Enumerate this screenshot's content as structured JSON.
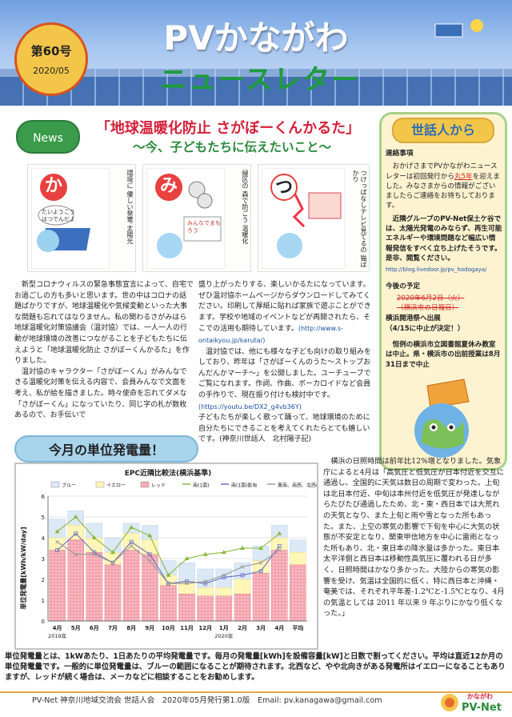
{
  "header": {
    "title": "PVかながわ",
    "subtitle": "ニュースレター",
    "issue": "第60号",
    "date": "2020/05"
  },
  "news": {
    "tag": "News",
    "headline": "「地球温暖化防止 さがぼーくんかるた」",
    "subheadline": "～今、子どもたちに伝えたいこと～",
    "cards": [
      {
        "letter": "か",
        "vertical_text": "環境に 優しい発電 太陽光",
        "bubble": "たいようこう はつでんだよ"
      },
      {
        "letter": "み",
        "vertical_text": "緑区の 森で防ごう 温暖化",
        "bubble": "みんなでまもろう"
      },
      {
        "letter": "つ",
        "vertical_text": "つけっぱなしテレビ見てるの 猫ばかり",
        "bubble": ""
      }
    ],
    "col1": [
      "新型コロナウィルスの緊急事態宣言によって、自宅でお過ごしの方も多いと思います。世の中はコロナの話題ばかりですが、地球温暖化や気候変動といった大事な問題も忘れてはなりません。私の関わるさがみはら地球温暖化対策協議会（温対協）では、一人一人の行動が地球環境の改善につながることを子どもたちに伝えようと「地球温暖化防止 さがぼーくんかるた」を作りました。",
      "温対協のキャラクター「さがぼーくん」がみんなできる温暖化対策を伝える内容で、会員みんなで文面を考え、私が絵を描きました。時々使命を忘れてダメな「さがぼーくん」になっていたり、同じ字の札が数枚あるので、お手伝いで"
    ],
    "col2_a": "盛り上がったりする、楽しいかるたになっています。ぜひ温対協ホームページからダウンロードしてみてください。印刷して厚紙に貼れば家族で遊ぶことができます。学校や地域のイベントなどが再開されたら、そこでの活用も期待しています。",
    "link1": "(http://www.s-ontaikyou.jp/karuta/)",
    "col2_b": "温対協では、他にも様々な子ども向けの取り組みをしており、昨年は「さがぼーくんのうた～ストップおんだんかマーチ～」を公開しました。ユーチューブでご覧になれます。作詞、作曲、ボーカロイドなど会員の手作りで、現在振り付けも検討中です。",
    "link2": "(https://youtu.be/DX2_g4vb36Y)",
    "col2_c": "子どもたちが楽しく歌って踊って、地球環境のために自分たちにできることを考えてくれたらとても嬉しいです。(神奈川世話人　北村陽子記)"
  },
  "sidebar": {
    "title": "世話人から",
    "contact_heading": "連絡事項",
    "contact_pre": "おかげさまでPVかながわニュースレターは初回発行から",
    "contact_em": "丸5年",
    "contact_post": "を迎えました。みなさまからの情報がございましたらご連絡をお待ちしております。",
    "group_text": "近隣グループのPV-Net保土ケ谷では、太陽光発電のみならず、再生可能エネルギーや環境問題など幅広い情報発信をすべく立ち上げたそうです。是非、閲覧ください。",
    "group_link": "http://blog.livedoor.jp/pv_hodogaya/",
    "schedule_heading": "今後の予定",
    "schedule_struck1": "2020年6月2日（火）",
    "schedule_struck2": "（横浜市の日報日）",
    "schedule_item": "横浜開港祭へ出展",
    "schedule_note": "（4/15に中止が決定！）",
    "library": "恒例の横浜市立図書館夏休み教室は中止。県・横浜市の出前授業は8月31日まで中止"
  },
  "kpi": {
    "title": "今月の単位発電量！",
    "weather": "横浜の日照時間は前年比12%増となりました。気象庁によると4月は「高気圧と低気圧が日本付近を交互に通過し、全国的に天気は数日の周期で変わった。上旬は北日本付近、中旬は本州付近を低気圧が発達しながらたびたび通過したため、北・東・西日本では大荒れの天気となり、また上旬と雨や雪となった所もあった。また、上空の寒気の影響で下旬を中心に大気の状態が不安定となり、関東甲信地方を中心に雷雨となった所もあり、北・東日本の降水量は多かった。東日本太平洋側と西日本は移動性高気圧に覆われる日が多く、日照時間はかなり多かった。大陸からの寒気の影響を受け、気温は全国的に低く、特に西日本と沖縄・奄美では、それぞれ平年差-1.2℃と-1.5℃となり、4月の気温としては 2011 年以来 9 年ぶりにかなり低くなった。」",
    "notes": "単位発電量とは、1kWあたり、1日あたりの平均発電量です。毎月の発電量[kWh]を設備容量[kW]と日数で割ってください。平均は直近12か月の単位発電量です。一般的に単位発電量は、ブルーの範囲になることが期待されます。北西など、やや北向きがある発電所はイエローになることもありますが、レッドが続く場合は、メーカなどに相談することをお勧めします。"
  },
  "chart_data": {
    "type": "bar",
    "title": "EPC近隣比較法(横浜基準)",
    "ylabel": "単位発電量[kWh/kW/day]",
    "ylim": [
      0,
      6
    ],
    "yticks": [
      0,
      1,
      2,
      3,
      4,
      5,
      6
    ],
    "categories": [
      "4月",
      "5月",
      "6月",
      "7月",
      "8月",
      "9月",
      "10月",
      "11月",
      "12月",
      "1月",
      "2月",
      "3月",
      "4月",
      "平均"
    ],
    "year_labels": [
      {
        "at": 0,
        "text": "2019年"
      },
      {
        "at": 9,
        "text": "2020年"
      }
    ],
    "legend": [
      "ブルー",
      "イエロー",
      "レッド",
      "南(1面)",
      "南(1面)影有",
      "東南、南西、北西(3面)"
    ],
    "colors": {
      "blue": "#dbe8f6",
      "yellow": "#fff6b8",
      "red": "#f4a3ad",
      "s1": "#8ab83a",
      "s1shade": "#6b6fbf",
      "multi": "#9a9a9a"
    },
    "bands": {
      "red_top": [
        3.4,
        3.9,
        3.3,
        2.7,
        3.4,
        3.2,
        1.7,
        1.3,
        1.2,
        1.2,
        1.3,
        2.3,
        3.4,
        2.7
      ],
      "yellow_top": [
        4.0,
        4.6,
        4.0,
        3.3,
        4.2,
        3.9,
        2.2,
        1.9,
        1.6,
        1.6,
        2.0,
        2.9,
        4.0,
        3.3
      ],
      "blue_top": [
        4.9,
        5.3,
        4.7,
        4.0,
        4.7,
        4.6,
        2.9,
        2.8,
        2.5,
        2.5,
        2.8,
        3.6,
        4.6,
        3.9
      ]
    },
    "series": [
      {
        "name": "南(1面)",
        "values": [
          4.3,
          5.0,
          4.0,
          3.3,
          4.5,
          4.1,
          2.2,
          3.0,
          3.2,
          3.3,
          3.5,
          3.5,
          4.2,
          null
        ]
      },
      {
        "name": "南(1面)影有",
        "values": [
          3.4,
          4.2,
          3.3,
          2.8,
          3.8,
          3.2,
          1.8,
          1.9,
          1.8,
          2.1,
          2.2,
          2.4,
          3.6,
          null
        ]
      },
      {
        "name": "東南、南西、北西(3面)",
        "values": [
          3.8,
          3.2,
          3.2,
          2.8,
          3.6,
          2.9,
          1.8,
          1.8,
          1.9,
          2.2,
          2.6,
          2.8,
          3.4,
          null
        ]
      }
    ]
  },
  "footer": {
    "text": "PV-Net 神奈川地域交流会 世話人会　2020年05月発行第1.0版　Email: pv.kanagawa@gmail.com",
    "logo_top": "かながわ",
    "logo_main": "PV-Net"
  }
}
